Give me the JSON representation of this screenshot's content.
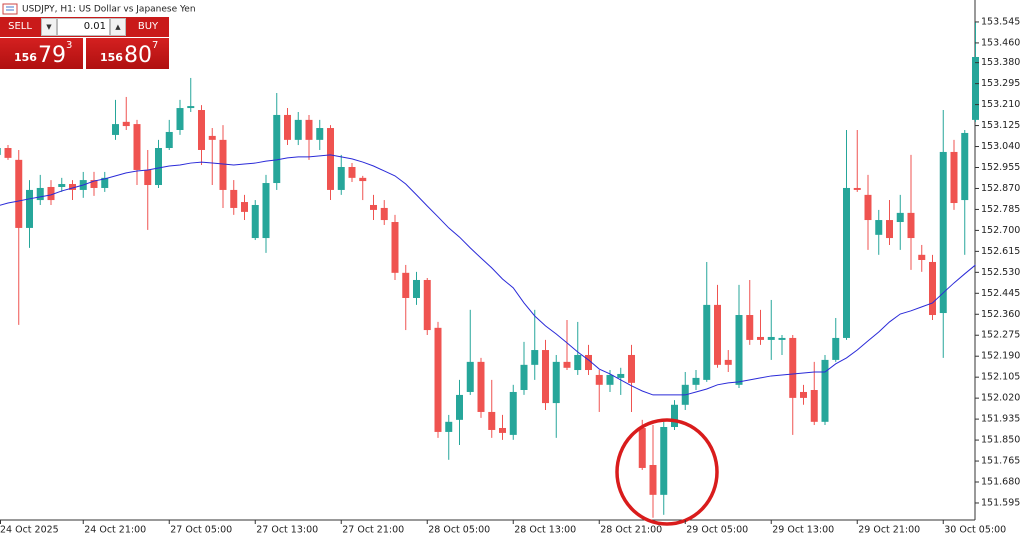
{
  "trade_panel": {
    "sell": "SELL",
    "volume": "0.01",
    "buy": "BUY",
    "bid": {
      "prefix": "156",
      "big": "79",
      "sup": "3"
    },
    "ask": {
      "prefix": "156",
      "big": "80",
      "sup": "7"
    }
  },
  "chart_data": {
    "type": "candlestick",
    "title": "USDJPY, H1: US Dollar vs Japanese Yen",
    "categories": [
      "24 Oct 2025",
      null,
      null,
      null,
      null,
      null,
      null,
      null,
      "24 Oct 21:00",
      null,
      null,
      null,
      null,
      null,
      null,
      null,
      "27 Oct 05:00",
      null,
      null,
      null,
      null,
      null,
      null,
      null,
      "27 Oct 13:00",
      null,
      null,
      null,
      null,
      null,
      null,
      null,
      "27 Oct 21:00",
      null,
      null,
      null,
      null,
      null,
      null,
      null,
      "28 Oct 05:00",
      null,
      null,
      null,
      null,
      null,
      null,
      null,
      "28 Oct 13:00",
      null,
      null,
      null,
      null,
      null,
      null,
      null,
      "28 Oct 21:00",
      null,
      null,
      null,
      null,
      null,
      null,
      null,
      "29 Oct 05:00",
      null,
      null,
      null,
      null,
      null,
      null,
      null,
      "29 Oct 13:00",
      null,
      null,
      null,
      null,
      null,
      null,
      null,
      "29 Oct 21:00",
      null,
      null,
      null,
      null,
      null,
      null,
      null,
      "30 Oct 05:00",
      null,
      null,
      null
    ],
    "open": [
      153.006,
      153.034,
      152.986,
      152.71,
      152.823,
      152.876,
      152.876,
      152.888,
      152.864,
      152.904,
      152.872,
      153.087,
      153.14,
      153.131,
      152.945,
      152.884,
      153.034,
      153.107,
      153.196,
      153.188,
      153.083,
      153.067,
      152.864,
      152.815,
      152.669,
      152.669,
      152.892,
      153.168,
      153.067,
      153.148,
      153.067,
      153.115,
      152.864,
      152.957,
      152.913,
      152.803,
      152.791,
      152.734,
      152.528,
      152.426,
      152.499,
      152.305,
      151.883,
      151.932,
      152.045,
      152.167,
      151.964,
      151.899,
      151.871,
      152.053,
      152.155,
      152.215,
      152.0,
      152.167,
      152.134,
      152.195,
      152.114,
      152.074,
      152.102,
      152.195,
      151.899,
      151.749,
      151.628,
      151.903,
      151.993,
      152.074,
      152.094,
      152.398,
      152.175,
      152.074,
      152.357,
      152.268,
      152.256,
      152.256,
      152.264,
      152.045,
      152.053,
      151.924,
      152.175,
      152.264,
      152.872,
      152.844,
      152.682,
      152.742,
      152.734,
      152.771,
      152.601,
      152.572,
      152.365,
      153.018,
      152.823,
      153.148
    ],
    "high": [
      153.046,
      153.046,
      153.026,
      152.904,
      152.925,
      152.904,
      152.913,
      152.904,
      152.937,
      152.937,
      152.937,
      153.229,
      153.241,
      153.148,
      153.026,
      153.067,
      153.148,
      153.229,
      153.318,
      153.208,
      153.115,
      153.127,
      152.904,
      152.844,
      152.823,
      152.925,
      153.257,
      153.196,
      153.18,
      153.168,
      153.148,
      153.127,
      153.006,
      152.973,
      152.921,
      152.844,
      152.823,
      152.763,
      152.56,
      152.532,
      152.507,
      152.329,
      151.952,
      152.094,
      152.378,
      152.183,
      152.094,
      151.952,
      152.074,
      152.248,
      152.378,
      152.256,
      152.195,
      152.337,
      152.329,
      152.236,
      152.134,
      152.134,
      152.143,
      152.236,
      151.932,
      151.911,
      151.924,
      152.012,
      152.126,
      152.134,
      152.572,
      152.479,
      152.215,
      152.479,
      152.499,
      152.378,
      152.418,
      152.276,
      152.276,
      152.074,
      152.167,
      152.195,
      152.345,
      153.107,
      153.107,
      152.925,
      152.783,
      152.823,
      152.844,
      153.006,
      152.641,
      152.601,
      153.188,
      153.067,
      153.107,
      153.545
    ],
    "low": [
      152.986,
      152.986,
      152.317,
      152.629,
      152.803,
      152.803,
      152.856,
      152.823,
      152.832,
      152.84,
      152.856,
      153.067,
      153.107,
      152.884,
      152.702,
      152.872,
      153.026,
      153.087,
      153.18,
      152.965,
      152.884,
      152.791,
      152.763,
      152.742,
      152.661,
      152.609,
      152.864,
      153.046,
      153.046,
      152.986,
      153.026,
      152.823,
      152.844,
      152.896,
      152.823,
      152.742,
      152.722,
      152.499,
      152.296,
      152.398,
      152.276,
      151.859,
      151.77,
      151.83,
      152.033,
      151.94,
      151.859,
      151.851,
      151.851,
      152.033,
      152.094,
      151.972,
      151.859,
      152.134,
      152.114,
      152.114,
      151.964,
      152.045,
      152.033,
      151.964,
      151.729,
      151.535,
      151.547,
      151.891,
      151.972,
      152.053,
      152.086,
      152.143,
      152.126,
      152.061,
      152.236,
      152.236,
      152.175,
      152.195,
      151.871,
      151.993,
      151.911,
      151.911,
      152.167,
      152.256,
      152.856,
      152.621,
      152.601,
      152.641,
      152.621,
      152.54,
      152.532,
      152.337,
      152.183,
      152.783,
      152.601,
      153.14
    ],
    "close": [
      153.034,
      152.994,
      152.71,
      152.864,
      152.872,
      152.823,
      152.888,
      152.864,
      152.904,
      152.872,
      152.913,
      153.131,
      153.123,
      152.945,
      152.884,
      153.034,
      153.099,
      153.196,
      153.204,
      153.026,
      153.067,
      152.864,
      152.791,
      152.775,
      152.803,
      152.892,
      153.168,
      153.067,
      153.148,
      153.067,
      153.115,
      152.864,
      152.957,
      152.913,
      152.9,
      152.783,
      152.742,
      152.528,
      152.426,
      152.499,
      152.296,
      151.883,
      151.924,
      152.033,
      152.167,
      151.964,
      151.891,
      151.879,
      152.045,
      152.155,
      152.215,
      152.0,
      152.167,
      152.143,
      152.195,
      152.134,
      152.074,
      152.114,
      152.118,
      152.082,
      151.737,
      151.628,
      151.903,
      151.993,
      152.074,
      152.102,
      152.398,
      152.155,
      152.155,
      152.357,
      152.256,
      152.256,
      152.268,
      152.264,
      152.021,
      152.021,
      151.924,
      152.175,
      152.264,
      152.872,
      152.864,
      152.742,
      152.742,
      152.669,
      152.771,
      152.669,
      152.58,
      152.357,
      153.018,
      152.811,
      153.095,
      153.403
    ],
    "up_color": "#26a69a",
    "down_color": "#ef5350",
    "overlays": [
      {
        "color": "#2a2ad8",
        "values": [
          152.799,
          152.811,
          152.819,
          152.828,
          152.836,
          152.844,
          152.86,
          152.872,
          152.884,
          152.9,
          152.909,
          152.921,
          152.933,
          152.941,
          152.945,
          152.953,
          152.961,
          152.965,
          152.973,
          152.977,
          152.973,
          152.969,
          152.965,
          152.969,
          152.973,
          152.981,
          152.986,
          152.994,
          152.998,
          152.998,
          153.002,
          153.006,
          152.998,
          152.99,
          152.977,
          152.961,
          152.941,
          152.921,
          152.888,
          152.844,
          152.799,
          152.755,
          152.71,
          152.673,
          152.629,
          152.588,
          152.548,
          152.503,
          152.467,
          152.406,
          152.353,
          152.313,
          152.28,
          152.244,
          152.207,
          152.175,
          152.138,
          152.118,
          152.094,
          152.07,
          152.049,
          152.033,
          152.033,
          152.033,
          152.033,
          152.045,
          152.057,
          152.074,
          152.082,
          152.086,
          152.094,
          152.102,
          152.11,
          152.114,
          152.118,
          152.122,
          152.126,
          152.126,
          152.159,
          152.183,
          152.215,
          152.252,
          152.288,
          152.329,
          152.361,
          152.374,
          152.39,
          152.406,
          152.447,
          152.487,
          152.524,
          152.56
        ]
      }
    ],
    "ylim": [
      151.526,
      153.634
    ],
    "yticks": [
      153.545,
      {
        "value": 153.46,
        "label": "153.460"
      },
      {
        "value": 153.38,
        "label": "153.380"
      },
      153.295,
      {
        "value": 153.21,
        "label": "153.210"
      },
      153.125,
      {
        "value": 153.04,
        "label": "153.040"
      },
      152.955,
      {
        "value": 152.87,
        "label": "152.870"
      },
      152.785,
      {
        "value": 152.7,
        "label": "152.700"
      },
      152.615,
      {
        "value": 152.53,
        "label": "152.530"
      },
      152.445,
      {
        "value": 152.36,
        "label": "152.360"
      },
      152.275,
      {
        "value": 152.19,
        "label": "152.190"
      },
      152.105,
      {
        "value": 152.02,
        "label": "152.020"
      },
      151.935,
      {
        "value": 151.85,
        "label": "151.850"
      },
      151.765,
      {
        "value": 151.68,
        "label": "151.680"
      },
      151.595
    ],
    "grid": false
  }
}
